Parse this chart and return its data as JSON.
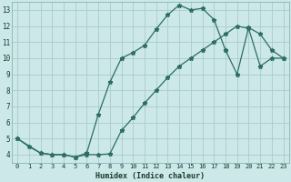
{
  "title": "",
  "xlabel": "Humidex (Indice chaleur)",
  "bg_color": "#cce8e8",
  "grid_color": "#aacccc",
  "line_color": "#2d6e63",
  "xlim": [
    -0.5,
    23.5
  ],
  "ylim": [
    3.5,
    13.5
  ],
  "xticks": [
    0,
    1,
    2,
    3,
    4,
    5,
    6,
    7,
    8,
    9,
    10,
    11,
    12,
    13,
    14,
    15,
    16,
    17,
    18,
    19,
    20,
    21,
    22,
    23
  ],
  "yticks": [
    4,
    5,
    6,
    7,
    8,
    9,
    10,
    11,
    12,
    13
  ],
  "line1_x": [
    0,
    1,
    2,
    3,
    4,
    5,
    6,
    7,
    8,
    9,
    10,
    11,
    12,
    13,
    14,
    15,
    16,
    17,
    18
  ],
  "line1_y": [
    5.0,
    4.5,
    4.1,
    4.0,
    4.0,
    3.85,
    4.1,
    6.5,
    8.5,
    10.0,
    10.35,
    10.8,
    11.8,
    12.7,
    13.3,
    13.0,
    13.1,
    12.4,
    10.5
  ],
  "line2_x": [
    0,
    2,
    3,
    4,
    5,
    6,
    7,
    8,
    9,
    10,
    11,
    12,
    13,
    14,
    15,
    16,
    17,
    18,
    19,
    20,
    21,
    22,
    23
  ],
  "line2_y": [
    5.0,
    4.1,
    4.0,
    4.0,
    3.85,
    4.0,
    4.0,
    4.05,
    5.5,
    6.3,
    7.2,
    8.0,
    8.8,
    9.5,
    10.0,
    10.5,
    11.0,
    11.5,
    12.0,
    11.85,
    9.5,
    10.0,
    10.0
  ],
  "line3_x": [
    18,
    19,
    20,
    21,
    22,
    23
  ],
  "line3_y": [
    10.5,
    9.0,
    11.9,
    11.5,
    10.5,
    10.0
  ]
}
